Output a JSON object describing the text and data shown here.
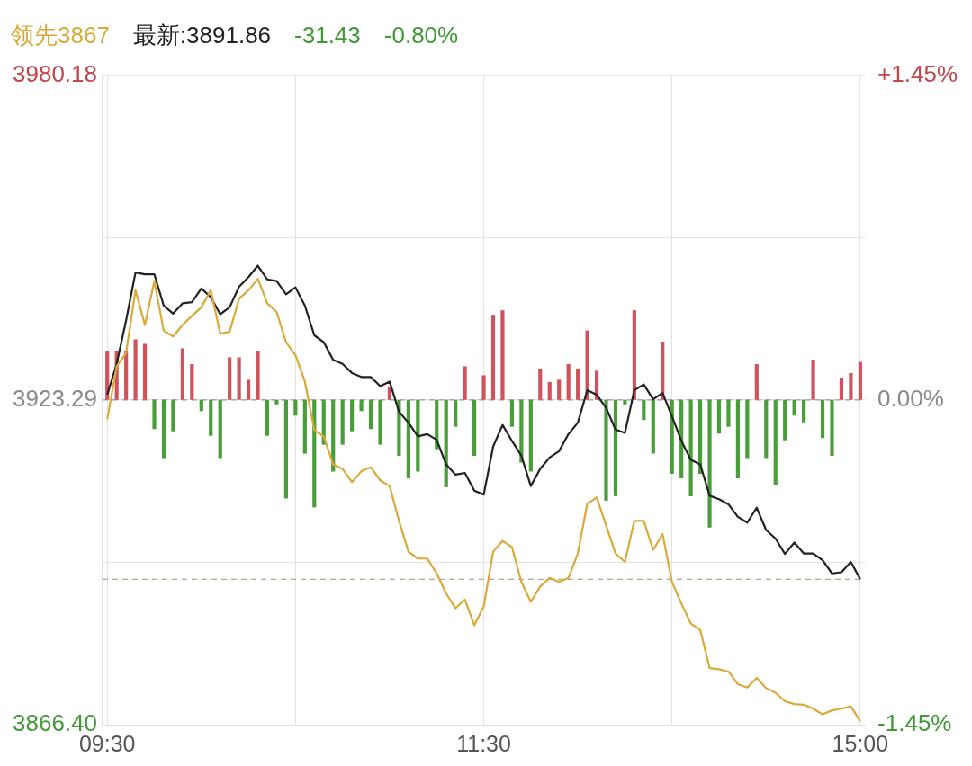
{
  "chart_data": {
    "type": "line",
    "categories": [
      "09:30",
      null,
      null,
      null,
      null,
      null,
      null,
      null,
      null,
      null,
      null,
      null,
      null,
      null,
      null,
      null,
      null,
      null,
      null,
      null,
      null,
      null,
      null,
      null,
      null,
      null,
      null,
      null,
      null,
      null,
      null,
      null,
      null,
      null,
      null,
      null,
      null,
      null,
      null,
      null,
      "11:30",
      null,
      null,
      null,
      null,
      null,
      null,
      null,
      null,
      null,
      null,
      null,
      null,
      null,
      null,
      null,
      null,
      null,
      null,
      null,
      null,
      null,
      null,
      null,
      null,
      null,
      null,
      null,
      null,
      null,
      null,
      null,
      null,
      null,
      null,
      null,
      null,
      null,
      null,
      null,
      "15:00"
    ],
    "series": [
      {
        "name": "领先3867",
        "type": "line",
        "color": "#d9a93a",
        "values": [
          3919.9,
          3929.2,
          3931.5,
          3942.5,
          3936.4,
          3944.1,
          3935.4,
          3934.4,
          3936.4,
          3938.0,
          3939.5,
          3942.5,
          3934.9,
          3935.2,
          3941.0,
          3942.5,
          3944.5,
          3940.2,
          3938.7,
          3933.4,
          3931.1,
          3926.5,
          3918.0,
          3916.9,
          3912.0,
          3911.2,
          3908.9,
          3910.8,
          3911.5,
          3909.2,
          3908.2,
          3902.1,
          3896.7,
          3895.5,
          3895.5,
          3892.9,
          3889.4,
          3886.8,
          3888.3,
          3883.8,
          3887.1,
          3896.7,
          3898.6,
          3897.5,
          3891.4,
          3887.9,
          3890.6,
          3892.1,
          3891.4,
          3892.1,
          3896.4,
          3905.1,
          3906.2,
          3901.3,
          3896.4,
          3894.9,
          3902.1,
          3902.1,
          3897.0,
          3899.8,
          3891.4,
          3887.6,
          3884.1,
          3883.0,
          3876.3,
          3876.1,
          3875.7,
          3873.5,
          3872.9,
          3874.6,
          3872.8,
          3872.0,
          3870.5,
          3870.0,
          3869.9,
          3869.2,
          3868.2,
          3868.9,
          3869.2,
          3869.6,
          3867.0
        ]
      },
      {
        "name": "最新:3891.86",
        "type": "line",
        "color": "#222222",
        "values": [
          3924.2,
          3929.6,
          3937.2,
          3945.6,
          3945.3,
          3945.3,
          3939.8,
          3938.4,
          3940.2,
          3940.4,
          3942.8,
          3941.3,
          3938.3,
          3939.5,
          3943.1,
          3944.8,
          3946.8,
          3944.4,
          3944.1,
          3941.8,
          3943.0,
          3939.8,
          3934.6,
          3933.4,
          3930.3,
          3929.6,
          3928.0,
          3927.3,
          3927.3,
          3925.7,
          3926.5,
          3921.2,
          3919.3,
          3916.9,
          3917.3,
          3916.3,
          3912.0,
          3910.2,
          3910.5,
          3907.4,
          3906.7,
          3915.1,
          3918.9,
          3916.1,
          3913.5,
          3908.2,
          3911.2,
          3913.2,
          3914.3,
          3917.3,
          3919.3,
          3925.0,
          3924.2,
          3921.9,
          3918.1,
          3917.5,
          3925.0,
          3926.0,
          3923.4,
          3924.5,
          3920.4,
          3916.1,
          3912.8,
          3912.0,
          3906.5,
          3905.9,
          3905.0,
          3902.8,
          3901.8,
          3904.4,
          3900.5,
          3899.0,
          3896.3,
          3898.3,
          3896.4,
          3896.4,
          3895.2,
          3892.9,
          3893.1,
          3894.9,
          3891.9
        ]
      },
      {
        "type": "bar",
        "axis": "y2",
        "colors": [
          "#d0535b",
          "#d0535b",
          "#d0535b",
          "#d0535b",
          "#d0535b",
          "#4a9e3a",
          "#4a9e3a",
          "#4a9e3a",
          "#d0535b",
          "#d0535b",
          "#4a9e3a",
          "#4a9e3a",
          "#4a9e3a",
          "#d0535b",
          "#d0535b",
          "#d0535b",
          "#d0535b",
          "#4a9e3a",
          "#4a9e3a",
          "#4a9e3a",
          "#4a9e3a",
          "#4a9e3a",
          "#4a9e3a",
          "#4a9e3a",
          "#4a9e3a",
          "#4a9e3a",
          "#4a9e3a",
          "#4a9e3a",
          "#4a9e3a",
          "#4a9e3a",
          "#d0535b",
          "#4a9e3a",
          "#4a9e3a",
          "#4a9e3a",
          "#4a9e3a",
          "#4a9e3a",
          "#4a9e3a",
          "#4a9e3a",
          "#d0535b",
          "#4a9e3a",
          "#d0535b",
          "#d0535b",
          "#d0535b",
          "#4a9e3a",
          "#4a9e3a",
          "#4a9e3a",
          "#d0535b",
          "#d0535b",
          "#d0535b",
          "#d0535b",
          "#d0535b",
          "#d0535b",
          "#d0535b",
          "#4a9e3a",
          "#4a9e3a",
          "#4a9e3a",
          "#d0535b",
          "#4a9e3a",
          "#4a9e3a",
          "#d0535b",
          "#4a9e3a",
          "#4a9e3a",
          "#4a9e3a",
          "#4a9e3a",
          "#4a9e3a",
          "#4a9e3a",
          "#4a9e3a",
          "#4a9e3a",
          "#4a9e3a",
          "#d0535b",
          "#4a9e3a",
          "#4a9e3a",
          "#4a9e3a",
          "#4a9e3a",
          "#4a9e3a",
          "#d0535b",
          "#4a9e3a",
          "#4a9e3a",
          "#d0535b",
          "#d0535b",
          "#d0535b"
        ],
        "values": [
          0.22,
          0.22,
          0.22,
          0.27,
          0.25,
          -0.13,
          -0.26,
          -0.14,
          0.23,
          0.16,
          -0.05,
          -0.16,
          -0.26,
          0.19,
          0.19,
          0.09,
          0.22,
          -0.16,
          -0.02,
          -0.44,
          -0.07,
          -0.24,
          -0.48,
          -0.2,
          -0.32,
          -0.2,
          -0.14,
          -0.05,
          -0.13,
          -0.2,
          0.06,
          -0.25,
          -0.35,
          -0.32,
          null,
          -0.22,
          -0.39,
          -0.12,
          0.15,
          -0.25,
          0.11,
          0.38,
          0.4,
          -0.12,
          -0.28,
          -0.32,
          0.14,
          0.08,
          0.09,
          0.16,
          0.14,
          0.31,
          0.13,
          -0.45,
          -0.43,
          -0.02,
          0.4,
          -0.09,
          -0.24,
          0.26,
          -0.33,
          -0.35,
          -0.43,
          -0.33,
          -0.57,
          -0.15,
          -0.12,
          -0.35,
          -0.26,
          0.16,
          -0.26,
          -0.38,
          -0.18,
          -0.07,
          -0.1,
          0.18,
          -0.17,
          -0.25,
          0.1,
          0.12,
          0.17
        ]
      }
    ],
    "ylim": [
      3866.4,
      3980.18
    ],
    "yticks": [
      {
        "value": 3866.4,
        "label": "3866.40"
      },
      {
        "value": 3894.85,
        "label": null
      },
      3923.29,
      {
        "value": 3951.74,
        "label": null
      },
      3980.18
    ],
    "y2lim": [
      -1.45,
      1.45
    ],
    "y2ticks": [
      {
        "value": -1.45,
        "label": "-1.45%"
      },
      {
        "value": 0,
        "label": "0.00%"
      },
      {
        "value": 1.45,
        "label": "+1.45%"
      }
    ],
    "ref_lines": [
      {
        "axis": "y",
        "value": 3923.29,
        "line_style": "dashed",
        "color": "#999999"
      },
      {
        "axis": "y",
        "value": 3891.86,
        "line_style": "dashed",
        "color": "#b0a890"
      }
    ],
    "annotations": [
      "-31.43",
      "-0.80%"
    ],
    "grid": true,
    "legend": "top left",
    "marker": "none"
  }
}
